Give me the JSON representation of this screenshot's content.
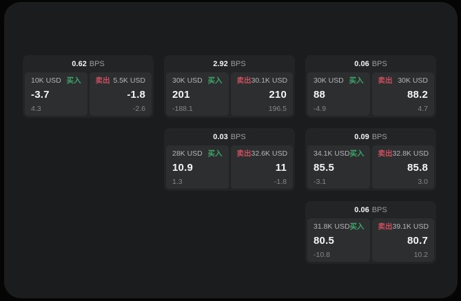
{
  "labels": {
    "bps_unit": "BPS",
    "buy": "买入",
    "sell": "卖出"
  },
  "colors": {
    "green": "#3fa56a",
    "red": "#c9505f",
    "bg-page": "#050505",
    "bg-panel": "#1b1c1d",
    "bg-card": "#232425",
    "bg-cell": "#2d2e30"
  },
  "cards": [
    {
      "bps": "0.62",
      "buy": {
        "amount": "10K USD",
        "price": "-3.7",
        "delta": "4.3"
      },
      "sell": {
        "amount": "5.5K USD",
        "price": "-1.8",
        "delta": "-2.6"
      }
    },
    {
      "bps": "2.92",
      "buy": {
        "amount": "30K USD",
        "price": "201",
        "delta": "-188.1"
      },
      "sell": {
        "amount": "30.1K USD",
        "price": "210",
        "delta": "196.5"
      }
    },
    {
      "bps": "0.06",
      "buy": {
        "amount": "30K USD",
        "price": "88",
        "delta": "-4.9"
      },
      "sell": {
        "amount": "30K USD",
        "price": "88.2",
        "delta": "4.7"
      }
    },
    {
      "bps": "0.03",
      "buy": {
        "amount": "28K USD",
        "price": "10.9",
        "delta": "1.3"
      },
      "sell": {
        "amount": "32.6K USD",
        "price": "11",
        "delta": "-1.8"
      }
    },
    {
      "bps": "0.09",
      "buy": {
        "amount": "34.1K USD",
        "price": "85.5",
        "delta": "-3.1"
      },
      "sell": {
        "amount": "32.8K USD",
        "price": "85.8",
        "delta": "3.0"
      }
    },
    {
      "bps": "0.06",
      "buy": {
        "amount": "31.8K USD",
        "price": "80.5",
        "delta": "-10.8"
      },
      "sell": {
        "amount": "39.1K USD",
        "price": "80.7",
        "delta": "10.2"
      }
    }
  ]
}
